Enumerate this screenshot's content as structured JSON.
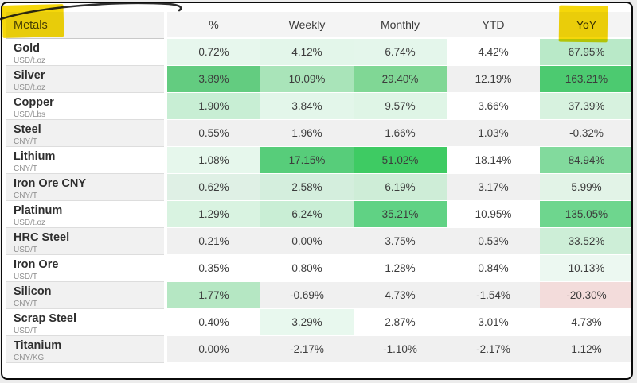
{
  "annotations": {
    "highlight_color": "#f5d70a",
    "highlighted_labels": [
      "Metals",
      "YoY"
    ]
  },
  "table": {
    "corner_label": "Metals",
    "columns": [
      "%",
      "Weekly",
      "Monthly",
      "YTD",
      "YoY"
    ],
    "rows": [
      {
        "name": "Gold",
        "unit": "USD/t.oz",
        "values": [
          "0.72%",
          "4.12%",
          "6.74%",
          "4.42%",
          "67.95%"
        ],
        "cell_colors": [
          "#e7f7ed",
          "#e3f6ea",
          "#e4f6eb",
          null,
          "#b9e9c8"
        ]
      },
      {
        "name": "Silver",
        "unit": "USD/t.oz",
        "values": [
          "3.89%",
          "10.09%",
          "29.40%",
          "12.19%",
          "163.21%"
        ],
        "cell_colors": [
          "#63cc80",
          "#a9e4b9",
          "#80d795",
          null,
          "#4cca70"
        ]
      },
      {
        "name": "Copper",
        "unit": "USD/Lbs",
        "values": [
          "1.90%",
          "3.84%",
          "9.57%",
          "3.66%",
          "37.39%"
        ],
        "cell_colors": [
          "#c8eed4",
          "#e3f6ea",
          "#dff5e6",
          null,
          "#d7f2df"
        ]
      },
      {
        "name": "Steel",
        "unit": "CNY/T",
        "values": [
          "0.55%",
          "1.96%",
          "1.66%",
          "1.03%",
          "-0.32%"
        ],
        "cell_colors": [
          null,
          null,
          null,
          null,
          null
        ]
      },
      {
        "name": "Lithium",
        "unit": "CNY/T",
        "values": [
          "1.08%",
          "17.15%",
          "51.02%",
          "18.14%",
          "84.94%"
        ],
        "cell_colors": [
          "#e6f7ec",
          "#57cd7a",
          "#3ecb63",
          null,
          "#82da9d"
        ]
      },
      {
        "name": "Iron Ore CNY",
        "unit": "CNY/T",
        "values": [
          "0.62%",
          "2.58%",
          "6.19%",
          "3.17%",
          "5.99%"
        ],
        "cell_colors": [
          "#dff0e5",
          "#d4eedd",
          "#ceedd7",
          null,
          "#e2f3e7"
        ]
      },
      {
        "name": "Platinum",
        "unit": "USD/t.oz",
        "values": [
          "1.29%",
          "6.24%",
          "35.21%",
          "10.95%",
          "135.05%"
        ],
        "cell_colors": [
          "#d9f3e1",
          "#c9eed5",
          "#60d284",
          null,
          "#6ed68e"
        ]
      },
      {
        "name": "HRC Steel",
        "unit": "USD/T",
        "values": [
          "0.21%",
          "0.00%",
          "3.75%",
          "0.53%",
          "33.52%"
        ],
        "cell_colors": [
          null,
          null,
          null,
          null,
          "#cdeed7"
        ]
      },
      {
        "name": "Iron Ore",
        "unit": "USD/T",
        "values": [
          "0.35%",
          "0.80%",
          "1.28%",
          "0.84%",
          "10.13%"
        ],
        "cell_colors": [
          null,
          null,
          null,
          null,
          "#ecf8f1"
        ]
      },
      {
        "name": "Silicon",
        "unit": "CNY/T",
        "values": [
          "1.77%",
          "-0.69%",
          "4.73%",
          "-1.54%",
          "-20.30%"
        ],
        "cell_colors": [
          "#b5e7c3",
          null,
          null,
          null,
          "#f3dcdb"
        ]
      },
      {
        "name": "Scrap Steel",
        "unit": "USD/T",
        "values": [
          "0.40%",
          "3.29%",
          "2.87%",
          "3.01%",
          "4.73%"
        ],
        "cell_colors": [
          null,
          "#e8f8ee",
          null,
          null,
          null
        ]
      },
      {
        "name": "Titanium",
        "unit": "CNY/KG",
        "values": [
          "0.00%",
          "-2.17%",
          "-1.10%",
          "-2.17%",
          "1.12%"
        ],
        "cell_colors": [
          null,
          null,
          null,
          null,
          null
        ]
      }
    ]
  }
}
